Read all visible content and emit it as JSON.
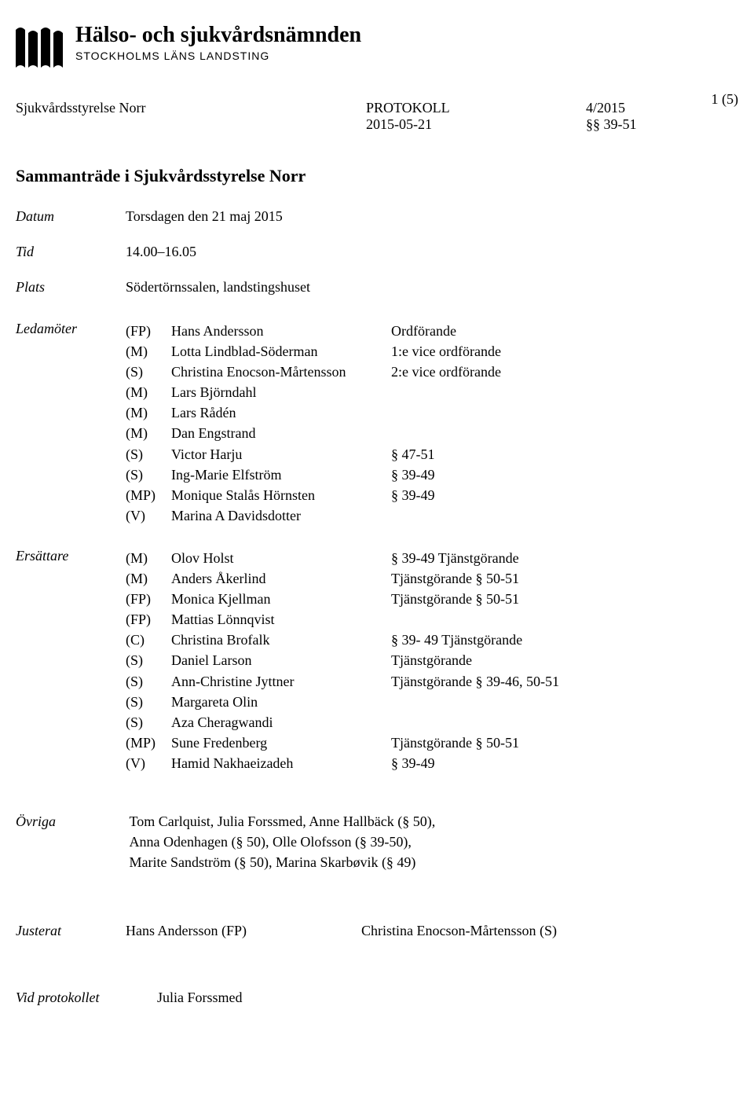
{
  "org": {
    "title": "Hälso- och sjukvårdsnämnden",
    "subtitle": "STOCKHOLMS LÄNS LANDSTING"
  },
  "page_number": "1 (5)",
  "doc_meta": {
    "board": "Sjukvårdsstyrelse Norr",
    "doc_type": "PROTOKOLL",
    "doc_number": "4/2015",
    "date_iso": "2015-05-21",
    "paragraph_range": "§§ 39-51"
  },
  "meeting": {
    "heading": "Sammanträde i Sjukvårdsstyrelse Norr",
    "date_label": "Datum",
    "date_value": "Torsdagen den 21 maj 2015",
    "time_label": "Tid",
    "time_value": "14.00–16.05",
    "place_label": "Plats",
    "place_value": "Södertörnssalen, landstingshuset"
  },
  "ledamoter": {
    "label": "Ledamöter",
    "rows": [
      {
        "party": "(FP)",
        "name": "Hans Andersson",
        "note": "Ordförande"
      },
      {
        "party": "(M)",
        "name": "Lotta Lindblad-Söderman",
        "note": "1:e vice ordförande"
      },
      {
        "party": "(S)",
        "name": "Christina Enocson-Mårtensson",
        "note": "2:e vice ordförande"
      },
      {
        "party": "(M)",
        "name": "Lars Björndahl",
        "note": ""
      },
      {
        "party": "(M)",
        "name": "Lars Rådén",
        "note": ""
      },
      {
        "party": "(M)",
        "name": "Dan Engstrand",
        "note": ""
      },
      {
        "party": "(S)",
        "name": "Victor Harju",
        "note": "§ 47-51"
      },
      {
        "party": "(S)",
        "name": "Ing-Marie Elfström",
        "note": "§ 39-49"
      },
      {
        "party": "(MP)",
        "name": "Monique Stalås Hörnsten",
        "note": "§ 39-49"
      },
      {
        "party": "(V)",
        "name": "Marina A Davidsdotter",
        "note": ""
      }
    ]
  },
  "ersattare": {
    "label": "Ersättare",
    "rows": [
      {
        "party": "(M)",
        "name": "Olov Holst",
        "note": "§ 39-49 Tjänstgörande"
      },
      {
        "party": "(M)",
        "name": "Anders Åkerlind",
        "note": "Tjänstgörande § 50-51"
      },
      {
        "party": "(FP)",
        "name": "Monica Kjellman",
        "note": "Tjänstgörande § 50-51"
      },
      {
        "party": "(FP)",
        "name": "Mattias Lönnqvist",
        "note": ""
      },
      {
        "party": "(C)",
        "name": "Christina Brofalk",
        "note": "§ 39- 49 Tjänstgörande"
      },
      {
        "party": "(S)",
        "name": "Daniel Larson",
        "note": "Tjänstgörande"
      },
      {
        "party": "(S)",
        "name": "Ann-Christine Jyttner",
        "note": "Tjänstgörande § 39-46, 50-51"
      },
      {
        "party": "(S)",
        "name": "Margareta Olin",
        "note": ""
      },
      {
        "party": "(S)",
        "name": "Aza Cheragwandi",
        "note": ""
      },
      {
        "party": "(MP)",
        "name": "Sune Fredenberg",
        "note": "Tjänstgörande § 50-51"
      },
      {
        "party": "(V)",
        "name": "Hamid Nakhaeizadeh",
        "note": "§ 39-49"
      }
    ]
  },
  "ovriga": {
    "label": "Övriga",
    "lines": [
      "Tom Carlquist, Julia Forssmed, Anne Hallbäck (§ 50),",
      "Anna Odenhagen (§ 50), Olle Olofsson (§ 39-50),",
      "Marite Sandström (§ 50), Marina Skarbøvik (§ 49)"
    ]
  },
  "justerat": {
    "label": "Justerat",
    "person1": "Hans Andersson (FP)",
    "person2": "Christina Enocson-Mårtensson (S)"
  },
  "vid_protokollet": {
    "label": "Vid protokollet",
    "person": "Julia Forssmed"
  },
  "colors": {
    "text": "#000000",
    "background": "#ffffff"
  },
  "fonts": {
    "body": "Georgia, 'Times New Roman', serif",
    "body_size_pt": 13,
    "heading_size_pt": 16,
    "org_title_size_pt": 21
  }
}
